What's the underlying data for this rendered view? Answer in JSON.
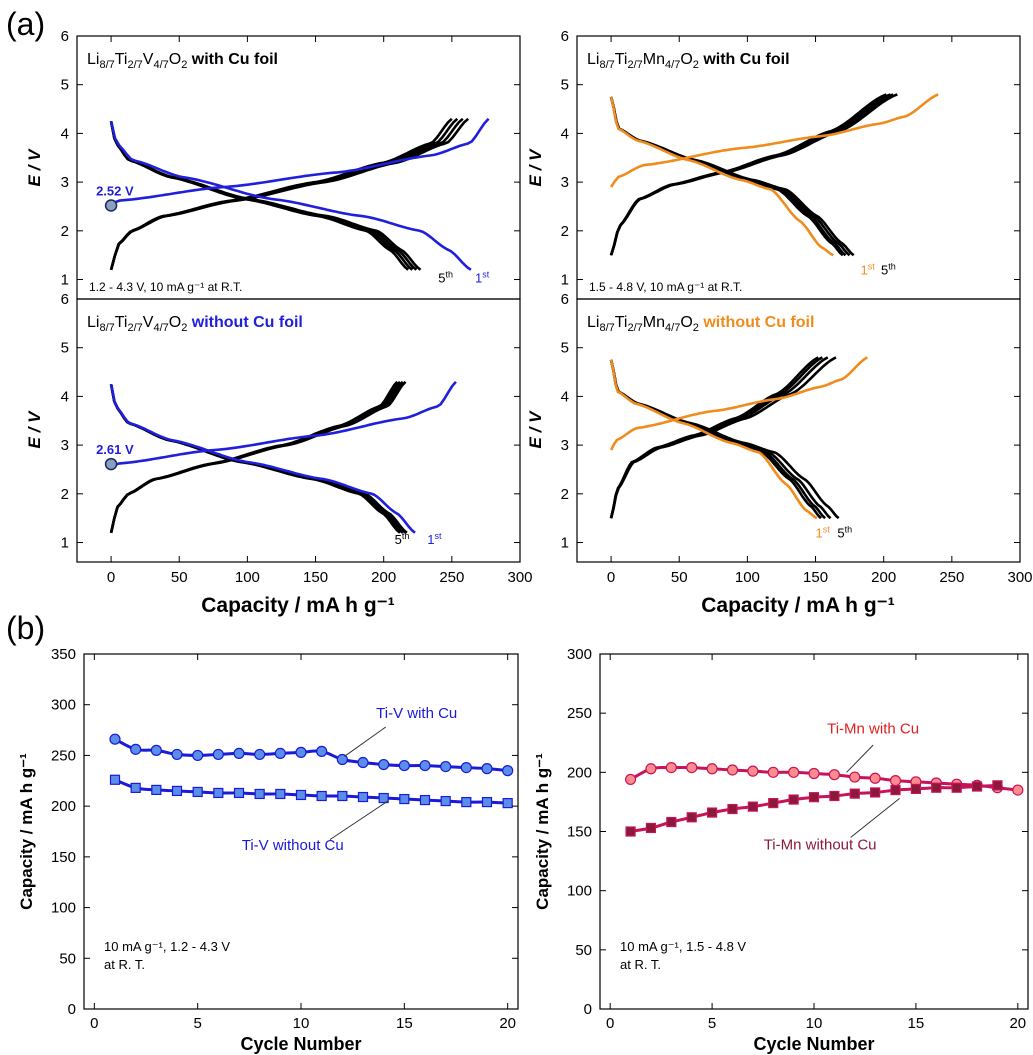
{
  "figure": {
    "panel_a_label": "(a)",
    "panel_b_label": "(b)",
    "ylabel_a": "E / V",
    "xlabel_a": "Capacity   /   mA h g⁻¹",
    "colors": {
      "black": "#000000",
      "blue": "#1f1fdc",
      "orange": "#f08c1e",
      "darkblue": "#1d1da8",
      "blue_marker": "#5b8ee8",
      "crimson": "#c8125a",
      "pink_marker": "#ff8c8c",
      "dark_red": "#8b1a3a"
    }
  },
  "chart_data": [
    {
      "id": "a-tl",
      "type": "line",
      "title_formula": [
        [
          "Li",
          ""
        ],
        [
          "8/7",
          "sub"
        ],
        [
          "Ti",
          ""
        ],
        [
          "2/7",
          "sub"
        ],
        [
          "V",
          ""
        ],
        [
          "4/7",
          "sub"
        ],
        [
          "O",
          ""
        ],
        [
          "2",
          "sub"
        ]
      ],
      "title_suffix": " with Cu foil",
      "suffix_color": "#000000",
      "condition": "1.2 - 4.3 V, 10 mA g⁻¹ at R.T.",
      "xlim": [
        -25,
        300
      ],
      "ylim": [
        0.6,
        6
      ],
      "xticks": [
        0,
        50,
        100,
        150,
        200,
        250,
        300
      ],
      "yticks": [
        1,
        2,
        3,
        4,
        5,
        6
      ],
      "voltage_label": "2.52 V",
      "voltage_point": [
        0,
        2.52
      ],
      "cycle_labels": [
        {
          "text": "5",
          "sup": "th",
          "x": 240,
          "y": 0.94,
          "color": "#000000"
        },
        {
          "text": "1",
          "sup": "st",
          "x": 267,
          "y": 0.94,
          "color": "#1f1fdc"
        }
      ],
      "series": [
        {
          "cycle": "1st",
          "color": "#1f1fdc",
          "charge": {
            "end": 277,
            "shape": "ch-v1"
          },
          "discharge": {
            "end": 264,
            "shape": "dis-v1"
          }
        },
        {
          "cycle": "2nd-5th",
          "color": "#000000",
          "charge_ends": [
            250,
            254,
            258,
            262
          ],
          "discharge_ends": [
            218,
            221,
            224,
            227
          ]
        }
      ]
    },
    {
      "id": "a-tr",
      "type": "line",
      "title_formula": [
        [
          "Li",
          ""
        ],
        [
          "8/7",
          "sub"
        ],
        [
          "Ti",
          ""
        ],
        [
          "2/7",
          "sub"
        ],
        [
          "Mn",
          ""
        ],
        [
          "4/7",
          "sub"
        ],
        [
          "O",
          ""
        ],
        [
          "2",
          "sub"
        ]
      ],
      "title_suffix": " with Cu foil",
      "suffix_color": "#000000",
      "condition": "1.5 - 4.8 V, 10 mA g⁻¹ at R.T.",
      "xlim": [
        -25,
        300
      ],
      "ylim": [
        0.6,
        6
      ],
      "xticks": [
        0,
        50,
        100,
        150,
        200,
        250,
        300
      ],
      "yticks": [
        1,
        2,
        3,
        4,
        5,
        6
      ],
      "cycle_labels": [
        {
          "text": "1",
          "sup": "st",
          "x": 183,
          "y": 1.1,
          "color": "#f08c1e"
        },
        {
          "text": "5",
          "sup": "th",
          "x": 198,
          "y": 1.1,
          "color": "#000000"
        }
      ],
      "series": [
        {
          "cycle": "1st",
          "color": "#f08c1e",
          "charge_end": 240,
          "discharge_end": 163
        },
        {
          "cycle": "2nd-5th",
          "color": "#000000",
          "charge_ends": [
            202,
            205,
            207,
            210
          ],
          "discharge_ends": [
            170,
            172,
            175,
            178
          ]
        }
      ]
    },
    {
      "id": "a-bl",
      "type": "line",
      "title_formula": [
        [
          "Li",
          ""
        ],
        [
          "8/7",
          "sub"
        ],
        [
          "Ti",
          ""
        ],
        [
          "2/7",
          "sub"
        ],
        [
          "V",
          ""
        ],
        [
          "4/7",
          "sub"
        ],
        [
          "O",
          ""
        ],
        [
          "2",
          "sub"
        ]
      ],
      "title_suffix": " without Cu foil",
      "suffix_color": "#1f1fdc",
      "xlim": [
        -25,
        300
      ],
      "ylim": [
        0.6,
        6
      ],
      "xticks": [
        0,
        50,
        100,
        150,
        200,
        250,
        300
      ],
      "yticks": [
        1,
        2,
        3,
        4,
        5,
        6
      ],
      "voltage_label": "2.61 V",
      "voltage_point": [
        0,
        2.61
      ],
      "cycle_labels": [
        {
          "text": "5",
          "sup": "th",
          "x": 208,
          "y": 0.97,
          "color": "#000000"
        },
        {
          "text": "1",
          "sup": "st",
          "x": 232,
          "y": 0.97,
          "color": "#1f1fdc"
        }
      ],
      "series": [
        {
          "cycle": "1st",
          "color": "#1f1fdc",
          "charge_end": 253,
          "discharge_end": 223
        },
        {
          "cycle": "2nd-5th",
          "color": "#000000",
          "charge_ends": [
            210,
            212,
            214,
            216
          ],
          "discharge_ends": [
            212,
            214,
            216,
            217
          ]
        }
      ]
    },
    {
      "id": "a-br",
      "type": "line",
      "title_formula": [
        [
          "Li",
          ""
        ],
        [
          "8/7",
          "sub"
        ],
        [
          "Ti",
          ""
        ],
        [
          "2/7",
          "sub"
        ],
        [
          "Mn",
          ""
        ],
        [
          "4/7",
          "sub"
        ],
        [
          "O",
          ""
        ],
        [
          "2",
          "sub"
        ]
      ],
      "title_suffix": " without Cu foil",
      "suffix_color": "#f08c1e",
      "xlim": [
        -25,
        300
      ],
      "ylim": [
        0.6,
        6
      ],
      "xticks": [
        0,
        50,
        100,
        150,
        200,
        250,
        300
      ],
      "yticks": [
        1,
        2,
        3,
        4,
        5,
        6
      ],
      "cycle_labels": [
        {
          "text": "1",
          "sup": "st",
          "x": 150,
          "y": 1.1,
          "color": "#f08c1e"
        },
        {
          "text": "5",
          "sup": "th",
          "x": 166,
          "y": 1.1,
          "color": "#000000"
        }
      ],
      "series": [
        {
          "cycle": "1st",
          "color": "#f08c1e",
          "charge_end": 188,
          "discharge_end": 151
        },
        {
          "cycle": "2nd-5th",
          "color": "#000000",
          "charge_ends": [
            152,
            155,
            159,
            165
          ],
          "discharge_ends": [
            154,
            157,
            161,
            167
          ]
        }
      ]
    },
    {
      "id": "b-left",
      "type": "scatter",
      "xlabel": "Cycle Number",
      "ylabel": "Capacity / mA h g⁻¹",
      "xlim": [
        -0.5,
        20.5
      ],
      "ylim": [
        0,
        350
      ],
      "xticks": [
        0,
        5,
        10,
        15,
        20
      ],
      "yticks": [
        0,
        50,
        100,
        150,
        200,
        250,
        300,
        350
      ],
      "condition_lines": [
        "10 mA g⁻¹, 1.2 - 4.3 V",
        "at R. T."
      ],
      "series": [
        {
          "name": "Ti-V with Cu",
          "marker": "circle",
          "fill": "#5b8ee8",
          "line": "#1a1ad8",
          "x": [
            1,
            2,
            3,
            4,
            5,
            6,
            7,
            8,
            9,
            10,
            11,
            12,
            13,
            14,
            15,
            16,
            17,
            18,
            19,
            20
          ],
          "y": [
            266,
            256,
            255,
            251,
            250,
            251,
            252,
            251,
            252,
            253,
            254,
            246,
            243,
            241,
            240,
            240,
            239,
            238,
            237,
            235
          ]
        },
        {
          "name": "Ti-V without Cu",
          "marker": "square",
          "fill": "#5b8ee8",
          "line": "#1a1ad8",
          "x": [
            1,
            2,
            3,
            4,
            5,
            6,
            7,
            8,
            9,
            10,
            11,
            12,
            13,
            14,
            15,
            16,
            17,
            18,
            19,
            20
          ],
          "y": [
            226,
            218,
            216,
            215,
            214,
            213,
            213,
            212,
            212,
            211,
            210,
            210,
            209,
            208,
            207,
            206,
            205,
            204,
            204,
            203
          ]
        }
      ],
      "annotations": [
        {
          "text": "Ti-V with Cu",
          "color": "#1a1ad8",
          "tx": 15.6,
          "ty": 287,
          "lx": [
            12.1,
            14.1
          ],
          "ly": [
            249,
            278
          ]
        },
        {
          "text": "Ti-V without Cu",
          "color": "#1a1ad8",
          "tx": 9.6,
          "ty": 157,
          "lx": [
            14.2,
            11.4
          ],
          "ly": [
            205,
            167
          ]
        }
      ]
    },
    {
      "id": "b-right",
      "type": "scatter",
      "xlabel": "Cycle Number",
      "ylabel": "Capacity / mA h g⁻¹",
      "xlim": [
        -0.5,
        20.5
      ],
      "ylim": [
        0,
        300
      ],
      "xticks": [
        0,
        5,
        10,
        15,
        20
      ],
      "yticks": [
        0,
        50,
        100,
        150,
        200,
        250,
        300
      ],
      "condition_lines": [
        "10 mA g⁻¹, 1.5 - 4.8 V",
        "at R. T."
      ],
      "series": [
        {
          "name": "Ti-Mn with Cu",
          "marker": "circle",
          "fill": "#ff8c8c",
          "line": "#c8125a",
          "x": [
            1,
            2,
            3,
            4,
            5,
            6,
            7,
            8,
            9,
            10,
            11,
            12,
            13,
            14,
            15,
            16,
            17,
            18,
            19,
            20
          ],
          "y": [
            194,
            203,
            204,
            204,
            203,
            202,
            201,
            200,
            200,
            199,
            198,
            196,
            195,
            193,
            192,
            191,
            190,
            189,
            187,
            185
          ]
        },
        {
          "name": "Ti-Mn without Cu",
          "marker": "square",
          "fill": "#8b1a3a",
          "line": "#c8125a",
          "x": [
            1,
            2,
            3,
            4,
            5,
            6,
            7,
            8,
            9,
            10,
            11,
            12,
            13,
            14,
            15,
            16,
            17,
            18,
            19
          ],
          "y": [
            150,
            153,
            158,
            162,
            166,
            169,
            171,
            174,
            177,
            179,
            180,
            182,
            183,
            185,
            186,
            187,
            187,
            188,
            189
          ]
        }
      ],
      "annotations": [
        {
          "text": "Ti-Mn with Cu",
          "color": "#e0201e",
          "tx": 12.9,
          "ty": 233,
          "lx": [
            11.6,
            12.9
          ],
          "ly": [
            200,
            223
          ]
        },
        {
          "text": "Ti-Mn without Cu",
          "color": "#8b1a3a",
          "tx": 10.3,
          "ty": 135,
          "lx": [
            14.2,
            11.8
          ],
          "ly": [
            178,
            145
          ]
        }
      ]
    }
  ]
}
